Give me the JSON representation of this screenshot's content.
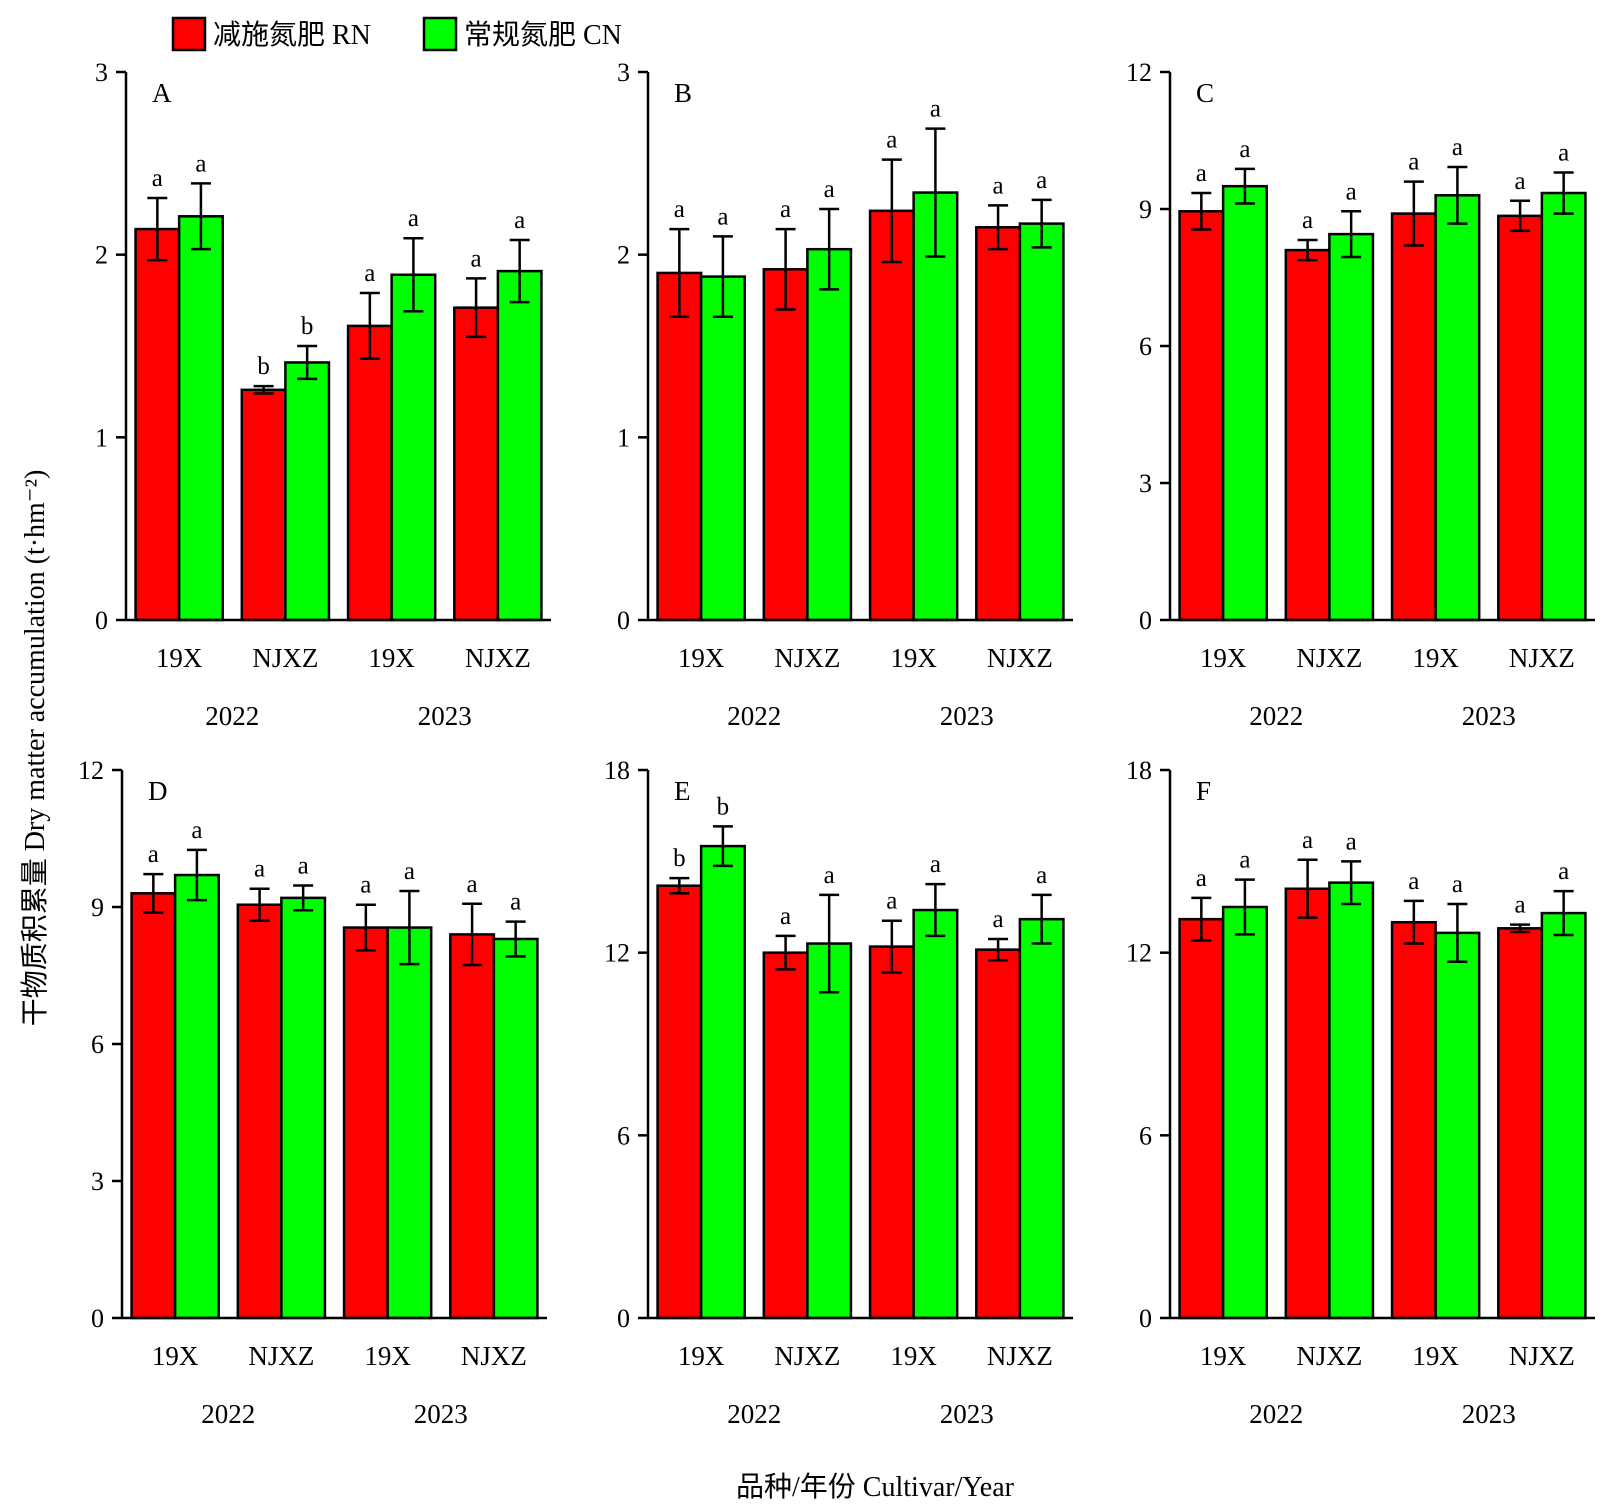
{
  "legend": [
    {
      "label": "减施氮肥 RN",
      "color": "#ff0000"
    },
    {
      "label": "常规氮肥 CN",
      "color": "#00ff00"
    }
  ],
  "ylabel": "干物质积累量 Dry matter accumulation (t·hm⁻²)",
  "xlabel": "品种/年份 Cultivar/Year",
  "chart_data": [
    {
      "panel": "A",
      "type": "bar",
      "categories": [
        "19X",
        "NJXZ",
        "19X",
        "NJXZ"
      ],
      "groups": [
        "2022",
        "2023"
      ],
      "ylim": [
        0,
        3
      ],
      "yticks": [
        0,
        1,
        2,
        3
      ],
      "series": [
        {
          "name": "减施氮肥 RN",
          "values": [
            2.14,
            1.26,
            1.61,
            1.71
          ],
          "errors": [
            0.17,
            0.02,
            0.18,
            0.16
          ],
          "sig": [
            "a",
            "b",
            "a",
            "a"
          ]
        },
        {
          "name": "常规氮肥 CN",
          "values": [
            2.21,
            1.41,
            1.89,
            1.91
          ],
          "errors": [
            0.18,
            0.09,
            0.2,
            0.17
          ],
          "sig": [
            "a",
            "b",
            "a",
            "a"
          ]
        }
      ]
    },
    {
      "panel": "B",
      "type": "bar",
      "categories": [
        "19X",
        "NJXZ",
        "19X",
        "NJXZ"
      ],
      "groups": [
        "2022",
        "2023"
      ],
      "ylim": [
        0,
        3
      ],
      "yticks": [
        0,
        1,
        2,
        3
      ],
      "series": [
        {
          "name": "减施氮肥 RN",
          "values": [
            1.9,
            1.92,
            2.24,
            2.15
          ],
          "errors": [
            0.24,
            0.22,
            0.28,
            0.12
          ],
          "sig": [
            "a",
            "a",
            "a",
            "a"
          ]
        },
        {
          "name": "常规氮肥 CN",
          "values": [
            1.88,
            2.03,
            2.34,
            2.17
          ],
          "errors": [
            0.22,
            0.22,
            0.35,
            0.13
          ],
          "sig": [
            "a",
            "a",
            "a",
            "a"
          ]
        }
      ]
    },
    {
      "panel": "C",
      "type": "bar",
      "categories": [
        "19X",
        "NJXZ",
        "19X",
        "NJXZ"
      ],
      "groups": [
        "2022",
        "2023"
      ],
      "ylim": [
        0,
        12
      ],
      "yticks": [
        0,
        3,
        6,
        9,
        12
      ],
      "series": [
        {
          "name": "减施氮肥 RN",
          "values": [
            8.95,
            8.1,
            8.9,
            8.85
          ],
          "errors": [
            0.4,
            0.22,
            0.7,
            0.33
          ],
          "sig": [
            "a",
            "a",
            "a",
            "a"
          ]
        },
        {
          "name": "常规氮肥 CN",
          "values": [
            9.5,
            8.45,
            9.3,
            9.35
          ],
          "errors": [
            0.38,
            0.5,
            0.62,
            0.45
          ],
          "sig": [
            "a",
            "a",
            "a",
            "a"
          ]
        }
      ]
    },
    {
      "panel": "D",
      "type": "bar",
      "categories": [
        "19X",
        "NJXZ",
        "19X",
        "NJXZ"
      ],
      "groups": [
        "2022",
        "2023"
      ],
      "ylim": [
        0,
        12
      ],
      "yticks": [
        0,
        3,
        6,
        9,
        12
      ],
      "series": [
        {
          "name": "减施氮肥 RN",
          "values": [
            9.3,
            9.05,
            8.55,
            8.4
          ],
          "errors": [
            0.42,
            0.35,
            0.5,
            0.67
          ],
          "sig": [
            "a",
            "a",
            "a",
            "a"
          ]
        },
        {
          "name": "常规氮肥 CN",
          "values": [
            9.7,
            9.2,
            8.55,
            8.3
          ],
          "errors": [
            0.55,
            0.27,
            0.8,
            0.38
          ],
          "sig": [
            "a",
            "a",
            "a",
            "a"
          ]
        }
      ]
    },
    {
      "panel": "E",
      "type": "bar",
      "categories": [
        "19X",
        "NJXZ",
        "19X",
        "NJXZ"
      ],
      "groups": [
        "2022",
        "2023"
      ],
      "ylim": [
        0,
        18
      ],
      "yticks": [
        0,
        6,
        12,
        18
      ],
      "series": [
        {
          "name": "减施氮肥 RN",
          "values": [
            14.2,
            12.0,
            12.2,
            12.1
          ],
          "errors": [
            0.25,
            0.55,
            0.85,
            0.35
          ],
          "sig": [
            "b",
            "a",
            "a",
            "a"
          ]
        },
        {
          "name": "常规氮肥 CN",
          "values": [
            15.5,
            12.3,
            13.4,
            13.1
          ],
          "errors": [
            0.65,
            1.6,
            0.85,
            0.8
          ],
          "sig": [
            "b",
            "a",
            "a",
            "a"
          ]
        }
      ]
    },
    {
      "panel": "F",
      "type": "bar",
      "categories": [
        "19X",
        "NJXZ",
        "19X",
        "NJXZ"
      ],
      "groups": [
        "2022",
        "2023"
      ],
      "ylim": [
        0,
        18
      ],
      "yticks": [
        0,
        6,
        12,
        18
      ],
      "series": [
        {
          "name": "减施氮肥 RN",
          "values": [
            13.1,
            14.1,
            13.0,
            12.8
          ],
          "errors": [
            0.7,
            0.95,
            0.7,
            0.12
          ],
          "sig": [
            "a",
            "a",
            "a",
            "a"
          ]
        },
        {
          "name": "常规氮肥 CN",
          "values": [
            13.5,
            14.3,
            12.65,
            13.3
          ],
          "errors": [
            0.9,
            0.7,
            0.95,
            0.72
          ],
          "sig": [
            "a",
            "a",
            "a",
            "a"
          ]
        }
      ]
    }
  ]
}
